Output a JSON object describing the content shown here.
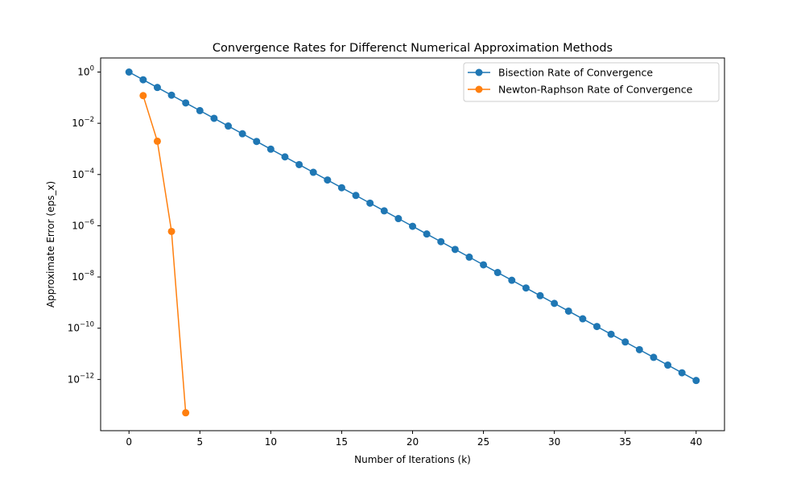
{
  "chart_data": {
    "type": "line",
    "title": "Convergence Rates for Differenct Numerical Approximation Methods",
    "xlabel": "Number of Iterations (k)",
    "ylabel": "Approximate Error (eps_x)",
    "xlim": [
      -2,
      42
    ],
    "ylim_log10": [
      -14.0,
      0.55
    ],
    "yscale": "log",
    "x_ticks": [
      0,
      5,
      10,
      15,
      20,
      25,
      30,
      35,
      40
    ],
    "x_tick_labels": [
      "0",
      "5",
      "10",
      "15",
      "20",
      "25",
      "30",
      "35",
      "40"
    ],
    "y_ticks_exp": [
      0,
      -2,
      -4,
      -6,
      -8,
      -10,
      -12
    ],
    "y_tick_base": "10",
    "y_tick_exponents": [
      "0",
      "−2",
      "−4",
      "−6",
      "−8",
      "−10",
      "−12"
    ],
    "grid": false,
    "legend_position": "top-right",
    "series": [
      {
        "name": "Bisection Rate of Convergence",
        "color": "#1f77b4",
        "x": [
          0,
          1,
          2,
          3,
          4,
          5,
          6,
          7,
          8,
          9,
          10,
          11,
          12,
          13,
          14,
          15,
          16,
          17,
          18,
          19,
          20,
          21,
          22,
          23,
          24,
          25,
          26,
          27,
          28,
          29,
          30,
          31,
          32,
          33,
          34,
          35,
          36,
          37,
          38,
          39,
          40
        ],
        "y": [
          1,
          0.5,
          0.25,
          0.125,
          0.0625,
          0.03125,
          0.015625,
          0.0078125,
          0.00390625,
          0.001953125,
          0.0009765625,
          0.00048828125,
          0.000244140625,
          0.0001220703125,
          6.103515625e-05,
          3.0517578125e-05,
          1.52587890625e-05,
          7.62939453125e-06,
          3.814697265625e-06,
          1.9073486328125e-06,
          9.5367431640625e-07,
          4.76837158203125e-07,
          2.384185791015625e-07,
          1.1920928955078125e-07,
          5.960464477539063e-08,
          2.9802322387695312e-08,
          1.4901161193847656e-08,
          7.450580596923828e-09,
          3.725290298461914e-09,
          1.862645149230957e-09,
          9.313225746154785e-10,
          4.656612873077393e-10,
          2.3283064365386963e-10,
          1.1641532182693481e-10,
          5.820766091346741e-11,
          2.9103830456733704e-11,
          1.4551915228366852e-11,
          7.275957614183426e-12,
          3.637978807091713e-12,
          1.8189894035458565e-12,
          9.094947017729282e-13
        ]
      },
      {
        "name": "Newton-Raphson Rate of Convergence",
        "color": "#ff7f0e",
        "x": [
          1,
          2,
          3,
          4
        ],
        "y": [
          0.12,
          0.002,
          6e-07,
          5e-14
        ]
      }
    ]
  }
}
